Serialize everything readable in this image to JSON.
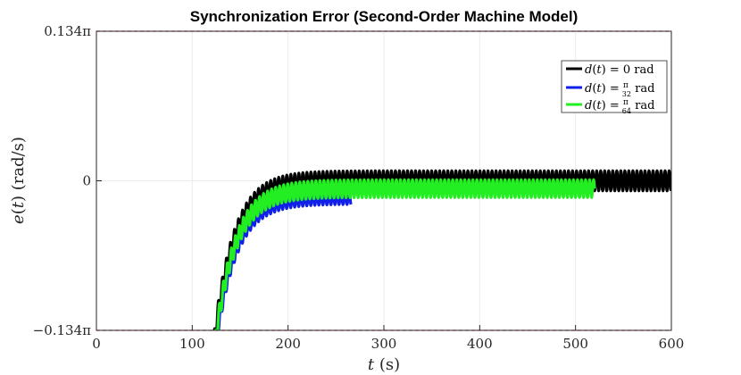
{
  "chart_data": {
    "type": "line",
    "title": "Synchronization Error (Second-Order Machine Model)",
    "xlabel": "t (s)",
    "ylabel": "e(t) (rad/s)",
    "xlim": [
      0,
      600
    ],
    "ylim": [
      -0.134,
      0.134
    ],
    "x_ticks": [
      0,
      100,
      200,
      300,
      400,
      500,
      600
    ],
    "x_tick_labels": [
      "0",
      "100",
      "200",
      "300",
      "400",
      "500",
      "600"
    ],
    "y_ticks": [
      -0.134,
      0,
      0.134
    ],
    "y_tick_labels": [
      "−0.134π",
      "0",
      "0.134π"
    ],
    "y_unit_note": "y values in units of π rad/s",
    "grid": true,
    "legend_position": "top-right",
    "reference_lines": [
      {
        "y": 0.134,
        "color": "#e8202a",
        "style": "dashed"
      },
      {
        "y": -0.134,
        "color": "#e8202a",
        "style": "dashed"
      }
    ],
    "series": [
      {
        "name": "d(t) = 0 rad",
        "color": "#000000",
        "t_start": 122,
        "t_end": 600,
        "tau": 21,
        "steady": 0.0,
        "ripple": 0.009,
        "period": 4.2,
        "x": [
          122,
          140,
          160,
          180,
          200,
          250,
          300,
          400,
          500,
          600
        ],
        "y": [
          -0.15,
          -0.065,
          -0.025,
          -0.009,
          -0.003,
          0.0,
          0.0,
          0.0,
          0.0,
          0.0
        ]
      },
      {
        "name": "d(t) = π/32 rad",
        "color": "#1020e8",
        "t_start": 124,
        "t_end": 266,
        "tau": 21,
        "steady": -0.015,
        "ripple": 0.006,
        "period": 4.2,
        "x": [
          124,
          140,
          160,
          180,
          200,
          220,
          266
        ],
        "y": [
          -0.15,
          -0.081,
          -0.041,
          -0.025,
          -0.019,
          -0.017,
          -0.015
        ]
      },
      {
        "name": "d(t) = π/64 rad",
        "color": "#22ee22",
        "t_start": 123,
        "t_end": 520,
        "tau": 21,
        "steady": -0.007,
        "ripple": 0.008,
        "period": 4.2,
        "x": [
          123,
          140,
          160,
          180,
          200,
          250,
          300,
          400,
          520
        ],
        "y": [
          -0.15,
          -0.073,
          -0.033,
          -0.016,
          -0.01,
          -0.007,
          -0.007,
          -0.007,
          -0.007
        ]
      }
    ],
    "legend": [
      {
        "label": "d(t) = 0 rad",
        "color": "#000000"
      },
      {
        "label": "d(t) = π/32 rad",
        "color": "#1020e8"
      },
      {
        "label": "d(t) = π/64 rad",
        "color": "#22ee22"
      }
    ]
  }
}
